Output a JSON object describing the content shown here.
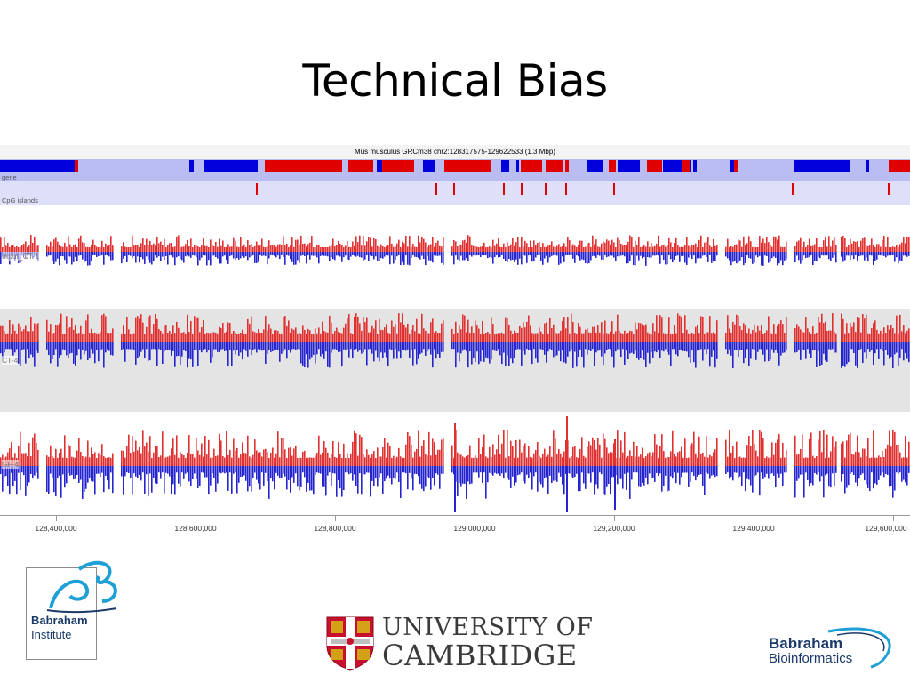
{
  "slide": {
    "title": "Technical Bias"
  },
  "browser": {
    "header": "Mus musculus GRCm38 chr2:128317575-129622533 (1.3 Mbp)",
    "feature_tracks": [
      {
        "label": "gene",
        "color_forward": "#0000dd",
        "color_reverse": "#e00000"
      },
      {
        "label": "CpG islands",
        "color": "#e00000"
      }
    ],
    "data_tracks": [
      {
        "label": "Input_CT-1"
      },
      {
        "label": "CT-4"
      },
      {
        "label": "GF-4"
      }
    ],
    "axis": {
      "ticks": [
        "128,400,000",
        "128,600,000",
        "128,800,000",
        "129,000,000",
        "129,200,000",
        "129,400,000",
        "129,600,000"
      ]
    },
    "colors": {
      "forward_reads": "#e03030",
      "reverse_reads": "#2525d0",
      "gene_band": "#b9bdf2",
      "cpg_band": "#dedff9",
      "track_alt_bg": "#e4e4e4"
    }
  },
  "logos": {
    "babraham_institute": {
      "name": "Babraham",
      "sub": "Institute"
    },
    "cambridge": {
      "line1": "UNIVERSITY OF",
      "line2": "CAMBRIDGE"
    },
    "babraham_bioinformatics": {
      "name": "Babraham",
      "sub": "Bioinformatics"
    }
  }
}
